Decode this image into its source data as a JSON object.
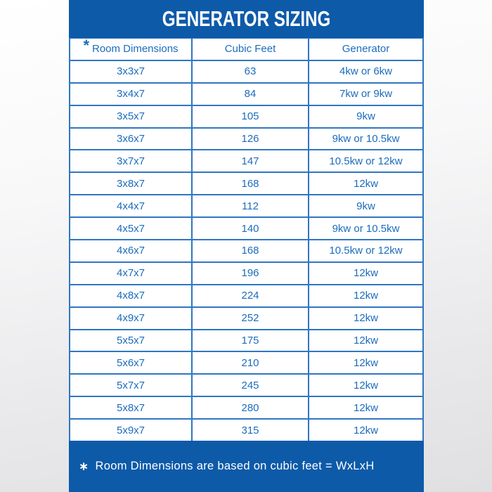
{
  "asterisks": {
    "header": "*",
    "footnote": "∗"
  },
  "colors": {
    "panel_blue": "#0d5aa8",
    "cell_text_blue": "#1c6cbd",
    "border_blue": "#2f76c2",
    "title_text": "#ffffff"
  },
  "chart_data": {
    "type": "table",
    "title": "GENERATOR SIZING",
    "columns": [
      "Room Dimensions",
      "Cubic Feet",
      "Generator"
    ],
    "rows": [
      [
        "3x3x7",
        "63",
        "4kw or 6kw"
      ],
      [
        "3x4x7",
        "84",
        "7kw or 9kw"
      ],
      [
        "3x5x7",
        "105",
        "9kw"
      ],
      [
        "3x6x7",
        "126",
        "9kw or 10.5kw"
      ],
      [
        "3x7x7",
        "147",
        "10.5kw or 12kw"
      ],
      [
        "3x8x7",
        "168",
        "12kw"
      ],
      [
        "4x4x7",
        "112",
        "9kw"
      ],
      [
        "4x5x7",
        "140",
        "9kw or 10.5kw"
      ],
      [
        "4x6x7",
        "168",
        "10.5kw or 12kw"
      ],
      [
        "4x7x7",
        "196",
        "12kw"
      ],
      [
        "4x8x7",
        "224",
        "12kw"
      ],
      [
        "4x9x7",
        "252",
        "12kw"
      ],
      [
        "5x5x7",
        "175",
        "12kw"
      ],
      [
        "5x6x7",
        "210",
        "12kw"
      ],
      [
        "5x7x7",
        "245",
        "12kw"
      ],
      [
        "5x8x7",
        "280",
        "12kw"
      ],
      [
        "5x9x7",
        "315",
        "12kw"
      ]
    ],
    "footnote": "Room Dimensions are based on cubic feet = WxLxH"
  }
}
